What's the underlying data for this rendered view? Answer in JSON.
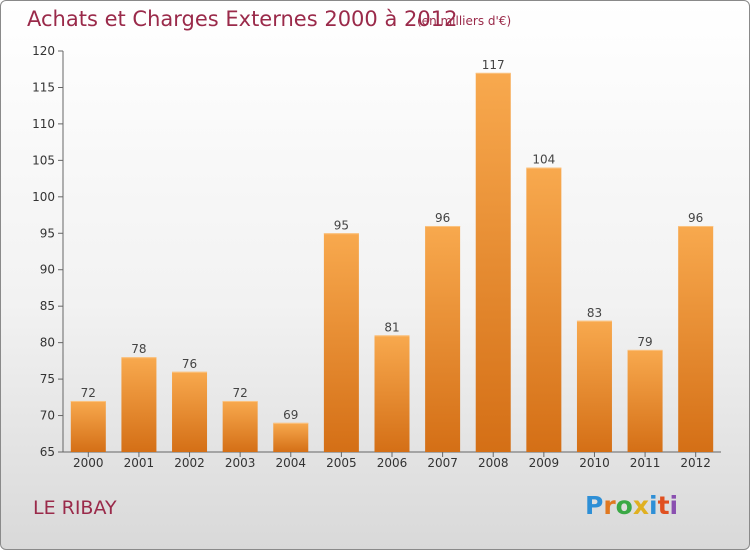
{
  "header": {
    "title": "Achats et Charges Externes 2000 à 2012",
    "subtitle": "(en milliers d'€)"
  },
  "footer": {
    "town": "LE RIBAY",
    "logo": {
      "text": "Proxiti",
      "colors": [
        "#2e8fd6",
        "#e07820",
        "#3aa845",
        "#e0b020",
        "#2e8fd6",
        "#e05020",
        "#8a4fb0"
      ]
    }
  },
  "colors": {
    "bar_light": "#f8a94e",
    "bar_dark": "#d46f16",
    "text_accent": "#9a2a4a"
  },
  "chart_data": {
    "type": "bar",
    "title": "Achats et Charges Externes 2000 à 2012",
    "subtitle": "(en milliers d'€)",
    "xlabel": "",
    "ylabel": "",
    "categories": [
      "2000",
      "2001",
      "2002",
      "2003",
      "2004",
      "2005",
      "2006",
      "2007",
      "2008",
      "2009",
      "2010",
      "2011",
      "2012"
    ],
    "values": [
      72,
      78,
      76,
      72,
      69,
      95,
      81,
      96,
      117,
      104,
      83,
      79,
      96
    ],
    "ylim": [
      65,
      120
    ],
    "yticks": [
      65,
      70,
      75,
      80,
      85,
      90,
      95,
      100,
      105,
      110,
      115,
      120
    ],
    "grid": false,
    "legend": "none"
  }
}
